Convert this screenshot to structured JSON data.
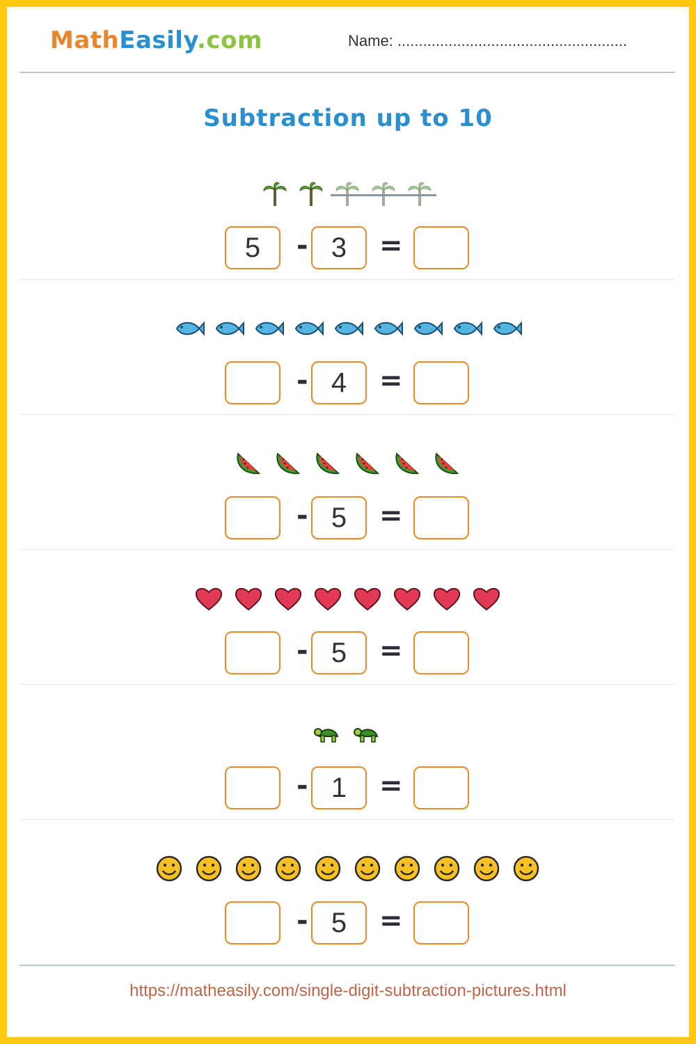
{
  "header": {
    "logo": {
      "part1": "Math",
      "part2": "Easily",
      "part3": ".com"
    },
    "name_label": "Name: ......................................................"
  },
  "title": "Subtraction up to 10",
  "colors": {
    "border": "#fdc80f",
    "title": "#2a8fce",
    "box_border": "#e88a25",
    "footer": "#c0654a"
  },
  "problems": [
    {
      "icon": "palm-tree-icon",
      "count": 5,
      "crossed": 3,
      "a": "5",
      "b": "3",
      "minus": "-",
      "equals": "=",
      "result": ""
    },
    {
      "icon": "fish-icon",
      "count": 9,
      "crossed": 0,
      "a": "",
      "b": "4",
      "minus": "-",
      "equals": "=",
      "result": ""
    },
    {
      "icon": "watermelon-icon",
      "count": 6,
      "crossed": 0,
      "a": "",
      "b": "5",
      "minus": "-",
      "equals": "=",
      "result": ""
    },
    {
      "icon": "heart-icon",
      "count": 8,
      "crossed": 0,
      "a": "",
      "b": "5",
      "minus": "-",
      "equals": "=",
      "result": ""
    },
    {
      "icon": "turtle-icon",
      "count": 2,
      "crossed": 0,
      "a": "",
      "b": "1",
      "minus": "-",
      "equals": "=",
      "result": ""
    },
    {
      "icon": "smiley-icon",
      "count": 10,
      "crossed": 0,
      "a": "",
      "b": "5",
      "minus": "-",
      "equals": "=",
      "result": ""
    }
  ],
  "footer": "https://matheasily.com/single-digit-subtraction-pictures.html"
}
